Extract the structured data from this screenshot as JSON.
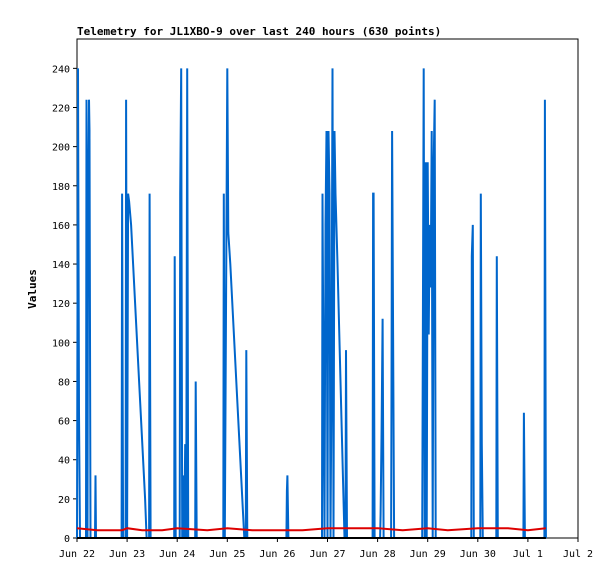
{
  "chart_data": {
    "type": "line",
    "title": "Telemetry for JL1XBO-9 over last 240 hours (630 points)",
    "xlabel": "",
    "ylabel": "Values",
    "xlim": [
      0,
      10
    ],
    "ylim": [
      0,
      255
    ],
    "grid": false,
    "legend": "none",
    "x_ticks": [
      {
        "x": 0,
        "label": "Jun 22"
      },
      {
        "x": 1,
        "label": "Jun 23"
      },
      {
        "x": 2,
        "label": "Jun 24"
      },
      {
        "x": 3,
        "label": "Jun 25"
      },
      {
        "x": 4,
        "label": "Jun 26"
      },
      {
        "x": 5,
        "label": "Jun 27"
      },
      {
        "x": 6,
        "label": "Jun 28"
      },
      {
        "x": 7,
        "label": "Jun 29"
      },
      {
        "x": 8,
        "label": "Jun 30"
      },
      {
        "x": 9,
        "label": "Jul 1"
      },
      {
        "x": 10,
        "label": "Jul 2"
      }
    ],
    "y_ticks": [
      0,
      20,
      40,
      60,
      80,
      100,
      120,
      140,
      160,
      180,
      200,
      220,
      240
    ],
    "series": [
      {
        "color": "#0066cc",
        "points": [
          [
            0.0,
            0
          ],
          [
            0.02,
            240
          ],
          [
            0.04,
            64
          ],
          [
            0.06,
            0
          ],
          [
            0.18,
            0
          ],
          [
            0.19,
            224
          ],
          [
            0.21,
            0
          ],
          [
            0.22,
            156
          ],
          [
            0.24,
            224
          ],
          [
            0.25,
            208
          ],
          [
            0.27,
            0
          ],
          [
            0.36,
            0
          ],
          [
            0.37,
            32
          ],
          [
            0.38,
            0
          ],
          [
            0.89,
            0
          ],
          [
            0.9,
            176
          ],
          [
            0.92,
            0
          ],
          [
            0.97,
            0
          ],
          [
            0.98,
            224
          ],
          [
            1.0,
            0
          ],
          [
            1.02,
            176
          ],
          [
            1.04,
            172
          ],
          [
            1.08,
            160
          ],
          [
            1.12,
            140
          ],
          [
            1.16,
            120
          ],
          [
            1.2,
            100
          ],
          [
            1.24,
            80
          ],
          [
            1.28,
            60
          ],
          [
            1.32,
            40
          ],
          [
            1.36,
            20
          ],
          [
            1.39,
            0
          ],
          [
            1.44,
            0
          ],
          [
            1.45,
            176
          ],
          [
            1.47,
            0
          ],
          [
            1.94,
            0
          ],
          [
            1.95,
            144
          ],
          [
            1.97,
            0
          ],
          [
            2.05,
            0
          ],
          [
            2.06,
            176
          ],
          [
            2.08,
            240
          ],
          [
            2.1,
            0
          ],
          [
            2.12,
            32
          ],
          [
            2.14,
            0
          ],
          [
            2.16,
            48
          ],
          [
            2.18,
            0
          ],
          [
            2.2,
            240
          ],
          [
            2.22,
            0
          ],
          [
            2.36,
            0
          ],
          [
            2.37,
            80
          ],
          [
            2.39,
            0
          ],
          [
            2.92,
            0
          ],
          [
            2.93,
            176
          ],
          [
            2.95,
            0
          ],
          [
            3.0,
            240
          ],
          [
            3.02,
            156
          ],
          [
            3.06,
            140
          ],
          [
            3.1,
            120
          ],
          [
            3.14,
            100
          ],
          [
            3.18,
            80
          ],
          [
            3.22,
            60
          ],
          [
            3.26,
            40
          ],
          [
            3.3,
            20
          ],
          [
            3.34,
            0
          ],
          [
            3.37,
            0
          ],
          [
            3.38,
            96
          ],
          [
            3.4,
            0
          ],
          [
            4.18,
            0
          ],
          [
            4.19,
            24
          ],
          [
            4.2,
            32
          ],
          [
            4.22,
            0
          ],
          [
            4.89,
            0
          ],
          [
            4.9,
            176
          ],
          [
            4.92,
            80
          ],
          [
            4.94,
            0
          ],
          [
            4.96,
            160
          ],
          [
            4.98,
            208
          ],
          [
            5.0,
            0
          ],
          [
            5.02,
            208
          ],
          [
            5.04,
            176
          ],
          [
            5.06,
            0
          ],
          [
            5.08,
            80
          ],
          [
            5.1,
            240
          ],
          [
            5.12,
            0
          ],
          [
            5.14,
            208
          ],
          [
            5.16,
            176
          ],
          [
            5.2,
            140
          ],
          [
            5.24,
            100
          ],
          [
            5.28,
            60
          ],
          [
            5.32,
            20
          ],
          [
            5.34,
            0
          ],
          [
            5.36,
            0
          ],
          [
            5.37,
            96
          ],
          [
            5.39,
            0
          ],
          [
            5.9,
            0
          ],
          [
            5.91,
            176
          ],
          [
            5.92,
            176
          ],
          [
            5.94,
            0
          ],
          [
            6.05,
            0
          ],
          [
            6.06,
            12
          ],
          [
            6.08,
            56
          ],
          [
            6.1,
            112
          ],
          [
            6.12,
            0
          ],
          [
            6.27,
            0
          ],
          [
            6.28,
            96
          ],
          [
            6.29,
            208
          ],
          [
            6.31,
            104
          ],
          [
            6.33,
            0
          ],
          [
            6.89,
            0
          ],
          [
            6.9,
            80
          ],
          [
            6.92,
            240
          ],
          [
            6.94,
            0
          ],
          [
            6.96,
            192
          ],
          [
            6.98,
            0
          ],
          [
            7.0,
            192
          ],
          [
            7.02,
            104
          ],
          [
            7.04,
            160
          ],
          [
            7.06,
            128
          ],
          [
            7.08,
            208
          ],
          [
            7.1,
            0
          ],
          [
            7.12,
            192
          ],
          [
            7.14,
            224
          ],
          [
            7.16,
            0
          ],
          [
            7.87,
            0
          ],
          [
            7.88,
            144
          ],
          [
            7.9,
            160
          ],
          [
            7.92,
            0
          ],
          [
            8.05,
            0
          ],
          [
            8.06,
            176
          ],
          [
            8.08,
            48
          ],
          [
            8.1,
            0
          ],
          [
            8.37,
            0
          ],
          [
            8.38,
            144
          ],
          [
            8.4,
            0
          ],
          [
            8.91,
            0
          ],
          [
            8.92,
            64
          ],
          [
            8.94,
            0
          ],
          [
            9.33,
            0
          ],
          [
            9.34,
            224
          ],
          [
            9.36,
            0
          ]
        ]
      },
      {
        "color": "#dd0000",
        "points": [
          [
            0.0,
            5
          ],
          [
            0.4,
            4
          ],
          [
            0.9,
            4
          ],
          [
            1.0,
            5
          ],
          [
            1.3,
            4
          ],
          [
            1.7,
            4
          ],
          [
            2.0,
            5
          ],
          [
            2.6,
            4
          ],
          [
            3.0,
            5
          ],
          [
            3.5,
            4
          ],
          [
            4.0,
            4
          ],
          [
            4.5,
            4
          ],
          [
            5.0,
            5
          ],
          [
            5.6,
            5
          ],
          [
            6.0,
            5
          ],
          [
            6.5,
            4
          ],
          [
            7.0,
            5
          ],
          [
            7.4,
            4
          ],
          [
            8.0,
            5
          ],
          [
            8.6,
            5
          ],
          [
            9.0,
            4
          ],
          [
            9.36,
            5
          ]
        ]
      },
      {
        "color": "#000000",
        "points": [
          [
            0.0,
            0
          ],
          [
            9.36,
            0
          ]
        ]
      }
    ]
  }
}
